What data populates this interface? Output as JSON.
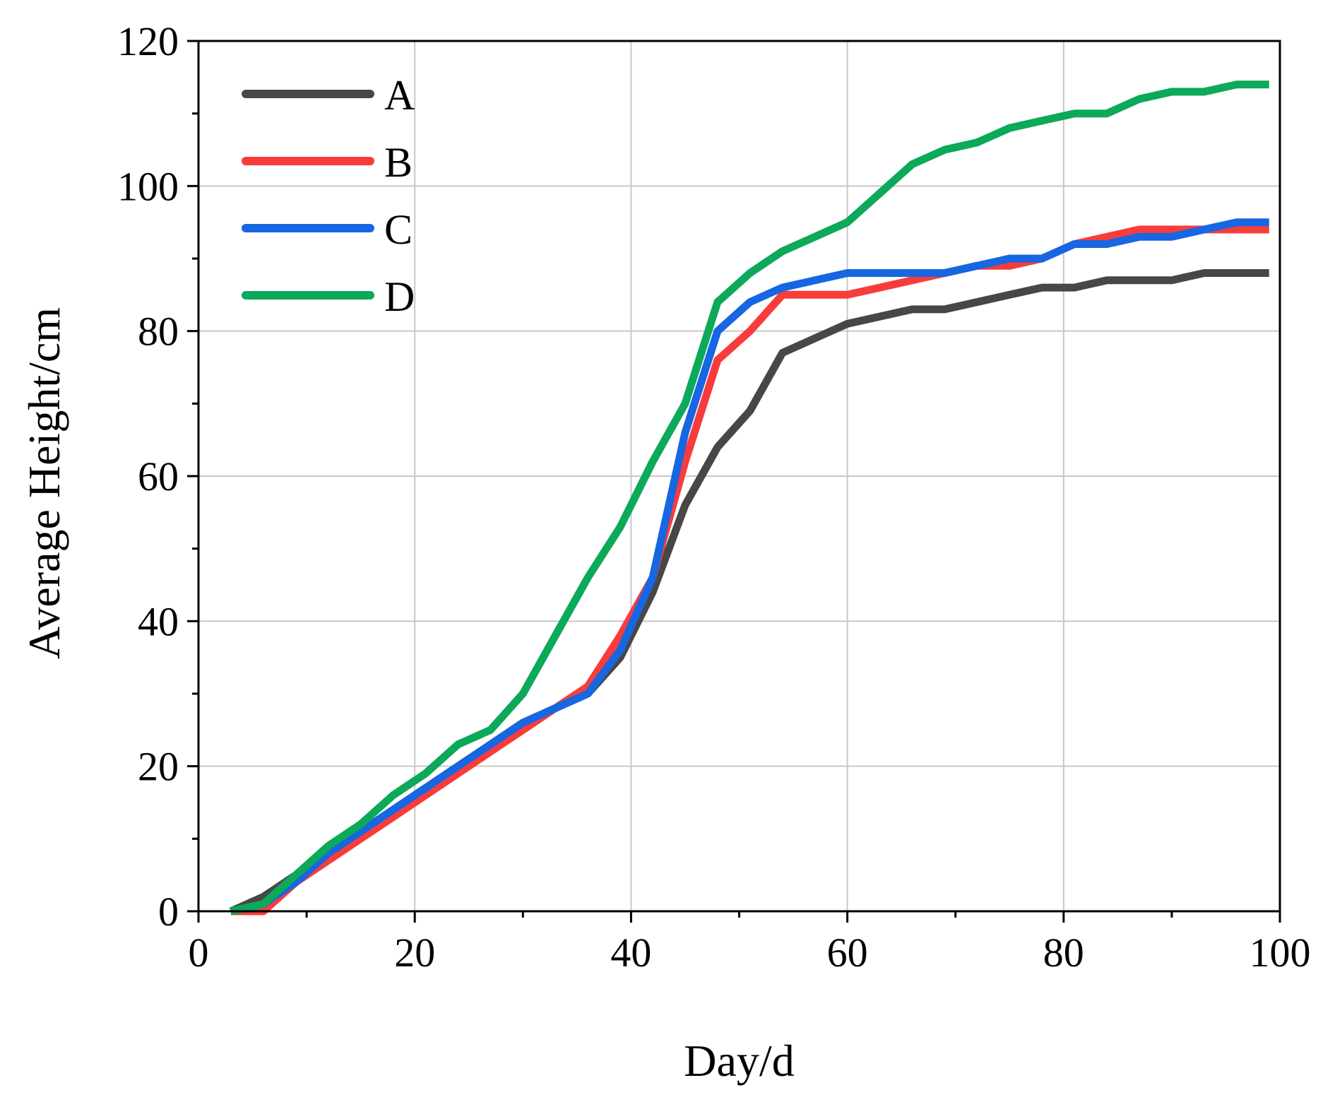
{
  "chart_data": {
    "type": "line",
    "title": "",
    "xlabel": "Day/d",
    "ylabel": "Average Height/cm",
    "xlim": [
      0,
      100
    ],
    "ylim": [
      0,
      120
    ],
    "xticks": [
      "0",
      "20",
      "40",
      "60",
      "80",
      "100"
    ],
    "yticks": [
      "0",
      "20",
      "40",
      "60",
      "80",
      "100",
      "120"
    ],
    "grid": true,
    "legend_position": "top-left",
    "series": [
      {
        "name": "A",
        "color": "#474747",
        "x": [
          3,
          6,
          9,
          12,
          15,
          18,
          21,
          24,
          27,
          30,
          33,
          36,
          39,
          42,
          45,
          48,
          51,
          54,
          57,
          60,
          63,
          66,
          69,
          72,
          75,
          78,
          81,
          84,
          87,
          90,
          93,
          96,
          99
        ],
        "y": [
          0,
          2,
          5,
          8,
          11,
          14,
          17,
          20,
          23,
          26,
          28,
          30,
          35,
          44,
          56,
          64,
          69,
          77,
          79,
          81,
          82,
          83,
          83,
          84,
          85,
          86,
          86,
          87,
          87,
          87,
          88,
          88,
          88
        ]
      },
      {
        "name": "B",
        "color": "#f83c3c",
        "x": [
          3,
          6,
          9,
          12,
          15,
          18,
          21,
          24,
          27,
          30,
          33,
          36,
          39,
          42,
          45,
          48,
          51,
          54,
          57,
          60,
          63,
          66,
          69,
          72,
          75,
          78,
          81,
          84,
          87,
          90,
          93,
          96,
          99
        ],
        "y": [
          0,
          0,
          4,
          7,
          10,
          13,
          16,
          19,
          22,
          25,
          28,
          31,
          38,
          46,
          62,
          76,
          80,
          85,
          85,
          85,
          86,
          87,
          88,
          89,
          89,
          90,
          92,
          93,
          94,
          94,
          94,
          94,
          94
        ]
      },
      {
        "name": "C",
        "color": "#1766e2",
        "x": [
          3,
          6,
          9,
          12,
          15,
          18,
          21,
          24,
          27,
          30,
          33,
          36,
          39,
          42,
          45,
          48,
          51,
          54,
          57,
          60,
          63,
          66,
          69,
          72,
          75,
          78,
          81,
          84,
          87,
          90,
          93,
          96,
          99
        ],
        "y": [
          0,
          1,
          4,
          8,
          11,
          14,
          17,
          20,
          23,
          26,
          28,
          30,
          36,
          46,
          66,
          80,
          84,
          86,
          87,
          88,
          88,
          88,
          88,
          89,
          90,
          90,
          92,
          92,
          93,
          93,
          94,
          95,
          95
        ]
      },
      {
        "name": "D",
        "color": "#0ca95a",
        "x": [
          3,
          6,
          9,
          12,
          15,
          18,
          21,
          24,
          27,
          30,
          33,
          36,
          39,
          42,
          45,
          48,
          51,
          54,
          57,
          60,
          63,
          66,
          69,
          72,
          75,
          78,
          81,
          84,
          87,
          90,
          93,
          96,
          99
        ],
        "y": [
          0,
          1,
          5,
          9,
          12,
          16,
          19,
          23,
          25,
          30,
          38,
          46,
          53,
          62,
          70,
          84,
          88,
          91,
          93,
          95,
          99,
          103,
          105,
          106,
          108,
          109,
          110,
          110,
          112,
          113,
          113,
          114,
          114
        ]
      }
    ]
  }
}
